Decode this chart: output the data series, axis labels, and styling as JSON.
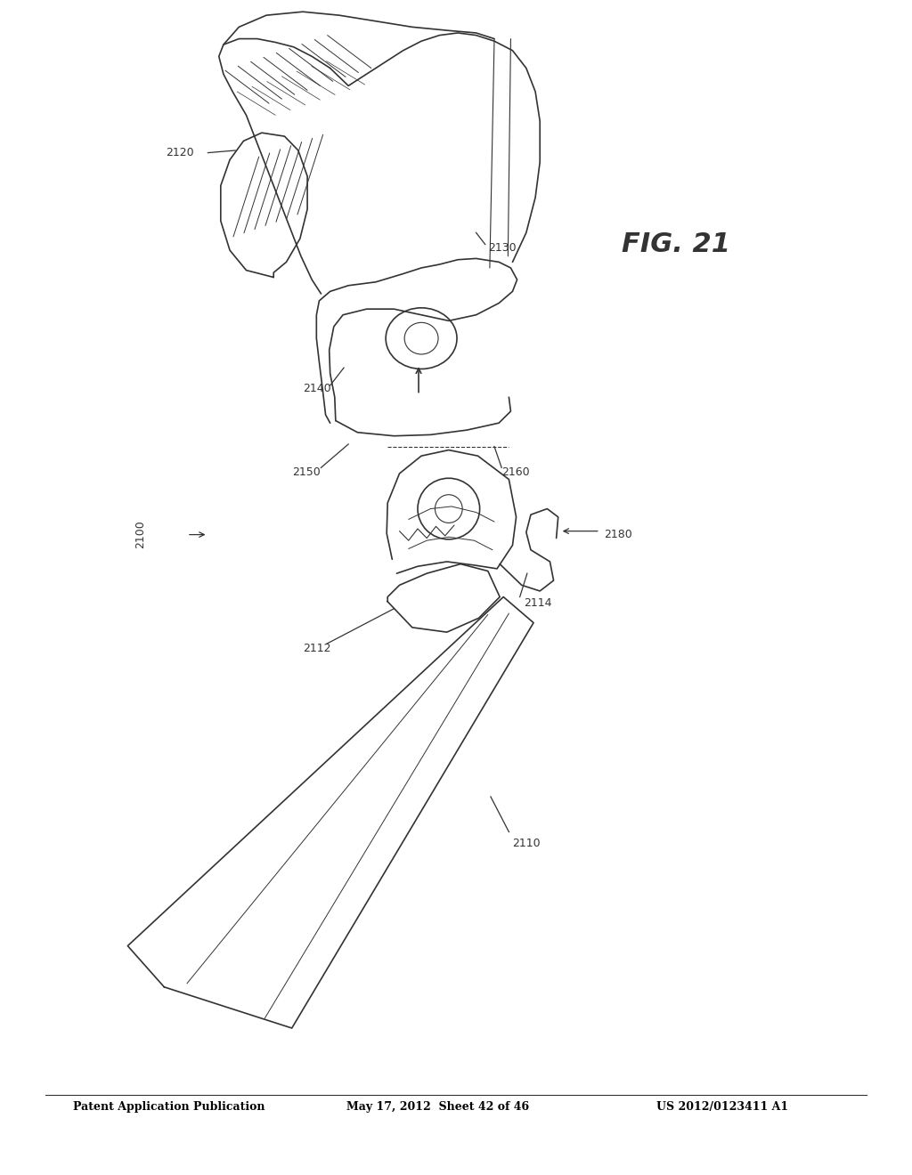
{
  "bg_color": "#ffffff",
  "line_color": "#333333",
  "header_left": "Patent Application Publication",
  "header_mid": "May 17, 2012  Sheet 42 of 46",
  "header_right": "US 2012/0123411 A1",
  "fig_label": "FIG. 21"
}
